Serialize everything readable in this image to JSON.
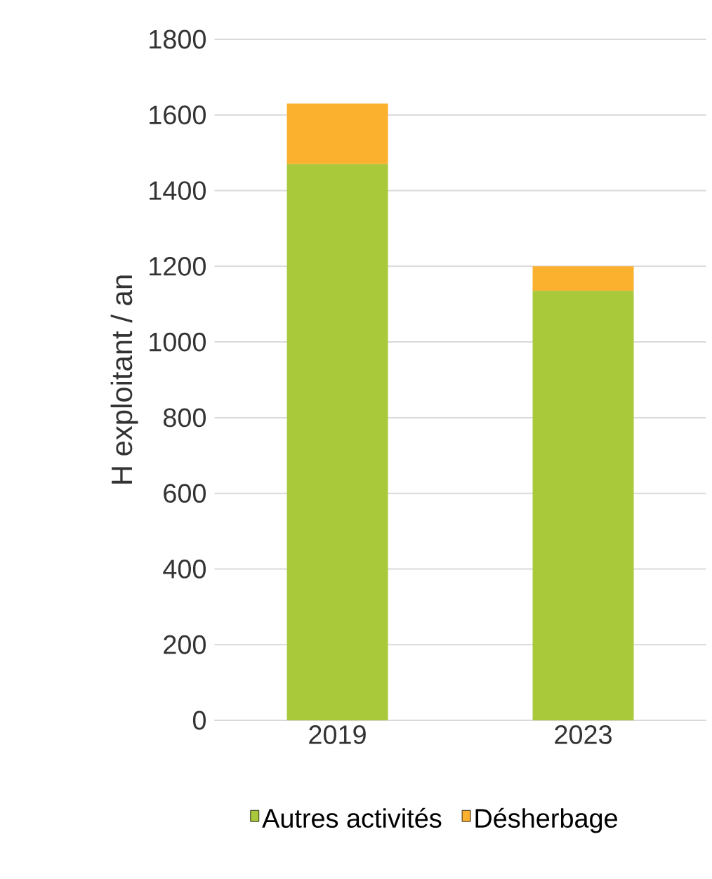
{
  "chart_data": {
    "type": "bar",
    "stacked": true,
    "ylabel": "H exploitant / an",
    "categories": [
      "2019",
      "2023"
    ],
    "series": [
      {
        "name": "Autres activités",
        "color": "#a9c83a",
        "values": [
          1470,
          1135
        ]
      },
      {
        "name": "Désherbage",
        "color": "#fbb02e",
        "values": [
          160,
          65
        ]
      }
    ],
    "ylim": [
      0,
      1800
    ],
    "yticks": [
      0,
      200,
      400,
      600,
      800,
      1000,
      1200,
      1400,
      1600,
      1800
    ],
    "grid": "y",
    "legend": "bottom"
  }
}
